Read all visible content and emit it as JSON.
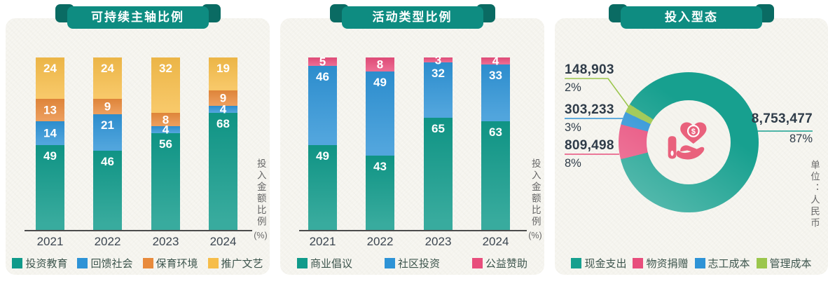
{
  "chart_data": [
    {
      "type": "bar",
      "stacked": true,
      "title": "可持续主轴比例",
      "categories": [
        "2021",
        "2022",
        "2023",
        "2024"
      ],
      "series": [
        {
          "name": "投资教育",
          "color": "#109a8a",
          "values": [
            49,
            46,
            56,
            68
          ]
        },
        {
          "name": "回馈社会",
          "color": "#2e93d6",
          "values": [
            14,
            21,
            4,
            4
          ]
        },
        {
          "name": "保育环境",
          "color": "#e88a3c",
          "values": [
            13,
            9,
            8,
            9
          ]
        },
        {
          "name": "推广文艺",
          "color": "#f6bd4a",
          "values": [
            24,
            24,
            32,
            19
          ]
        }
      ],
      "ylabel": "投入金额比例",
      "ylabel_unit": "(%)",
      "ylim": [
        0,
        100
      ],
      "grid": false,
      "legend_position": "bottom"
    },
    {
      "type": "bar",
      "stacked": true,
      "title": "活动类型比例",
      "categories": [
        "2021",
        "2022",
        "2023",
        "2024"
      ],
      "series": [
        {
          "name": "商业倡议",
          "color": "#109a8a",
          "values": [
            49,
            43,
            65,
            63
          ]
        },
        {
          "name": "社区投资",
          "color": "#2e93d6",
          "values": [
            46,
            49,
            32,
            33
          ]
        },
        {
          "name": "公益赞助",
          "color": "#e84e7c",
          "values": [
            5,
            8,
            3,
            4
          ]
        }
      ],
      "ylabel": "投入金额比例",
      "ylabel_unit": "(%)",
      "ylim": [
        0,
        100
      ],
      "grid": false,
      "legend_position": "bottom"
    },
    {
      "type": "pie",
      "subtype": "donut",
      "title": "投入型态",
      "unit_note": "单位：人民币",
      "segments": [
        {
          "name": "现金支出",
          "color": "#17a08f",
          "value": "8,753,477",
          "pct": "87%",
          "label_side": "right"
        },
        {
          "name": "物资捐赠",
          "color": "#e84e7c",
          "value": "809,498",
          "pct": "8%",
          "label_side": "left"
        },
        {
          "name": "志工成本",
          "color": "#2e93d6",
          "value": "303,233",
          "pct": "3%",
          "label_side": "left"
        },
        {
          "name": "管理成本",
          "color": "#9bc64c",
          "value": "148,903",
          "pct": "2%",
          "label_side": "left"
        }
      ],
      "start_angle_deg": 256,
      "center_icon": "hand-holding-heart-coin-icon",
      "legend_position": "bottom"
    }
  ],
  "colors": {
    "banner": "#0e8c81",
    "banner_fold": "#0a6b63",
    "card_background": "#f5f4ee",
    "value_label_text": "#ffffff",
    "donut_label_text": "#2f3c49",
    "axis_text": "#3b4550",
    "legend_text": "#3d554d"
  }
}
